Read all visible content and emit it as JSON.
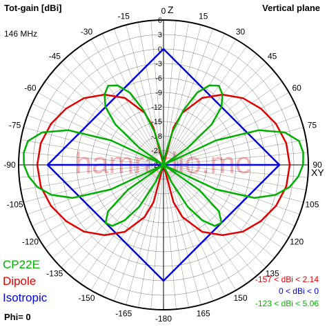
{
  "header": {
    "title": "Tot-gain [dBi]",
    "plane": "Vertical plane",
    "frequency": "146 MHz",
    "phi": "Phi= 0"
  },
  "watermark": "hamradio.me",
  "axis_markers": {
    "z": "Z",
    "xy": "XY"
  },
  "colors": {
    "CP22E": "#00b000",
    "Dipole": "#e00000",
    "Isotropic": "#0000e0",
    "grid": "#000000",
    "watermark": "#f3b6b6"
  },
  "ranges": {
    "dipole": "-157 < dBi < 2.14",
    "isotropic": "0 < dBi < 0",
    "cp22e": "-123 < dBi < 5.06"
  },
  "chart_data": {
    "type": "polar",
    "radial_unit": "dBi",
    "radial_ticks": [
      6,
      3,
      0,
      -3,
      -6,
      -9,
      -12,
      -15,
      -18,
      -21,
      -24
    ],
    "radial_range": [
      -24,
      6
    ],
    "angle_ticks": [
      0,
      15,
      30,
      45,
      60,
      75,
      90,
      105,
      120,
      135,
      150,
      165,
      -180,
      -165,
      -150,
      -135,
      -120,
      -105,
      -90,
      -75,
      -60,
      -45,
      -30,
      -15
    ],
    "grid": true,
    "legend": [
      "CP22E",
      "Dipole",
      "Isotropic"
    ],
    "series": [
      {
        "name": "Isotropic",
        "angles": [
          0,
          90,
          180,
          270
        ],
        "gain_dbi": [
          0,
          0,
          0,
          0
        ]
      },
      {
        "name": "Dipole",
        "angles": [
          0,
          5,
          10,
          15,
          20,
          30,
          40,
          50,
          60,
          70,
          80,
          90,
          100,
          110,
          120,
          130,
          140,
          150,
          160,
          165,
          170,
          175,
          180
        ],
        "gain_dbi": [
          -24,
          -24,
          -24,
          -16,
          -12.5,
          -8,
          -5,
          -2.5,
          -0.7,
          0.8,
          1.8,
          2.14,
          1.8,
          0.8,
          -0.7,
          -2.5,
          -5,
          -8,
          -12.5,
          -16,
          -24,
          -24,
          -24
        ]
      },
      {
        "name": "CP22E",
        "angles": [
          0,
          5,
          10,
          15,
          20,
          25,
          30,
          35,
          40,
          45,
          50,
          55,
          60,
          65,
          70,
          75,
          80,
          85,
          90,
          95,
          100,
          105,
          110,
          115,
          120,
          125,
          130,
          135,
          140,
          145,
          150,
          155,
          160,
          165,
          170,
          175,
          180
        ],
        "gain_dbi": [
          -24,
          -24,
          -22,
          -17,
          -12,
          -7.5,
          -5,
          -4,
          -5,
          -7,
          -11,
          -18,
          -24,
          -12,
          -3,
          2,
          4.5,
          5.06,
          4.9,
          4,
          2.5,
          0,
          -4,
          -12,
          -24,
          -15,
          -9,
          -7,
          -7.5,
          -10,
          -14,
          -20,
          -24,
          -24,
          -24,
          -24,
          -24
        ]
      }
    ]
  }
}
